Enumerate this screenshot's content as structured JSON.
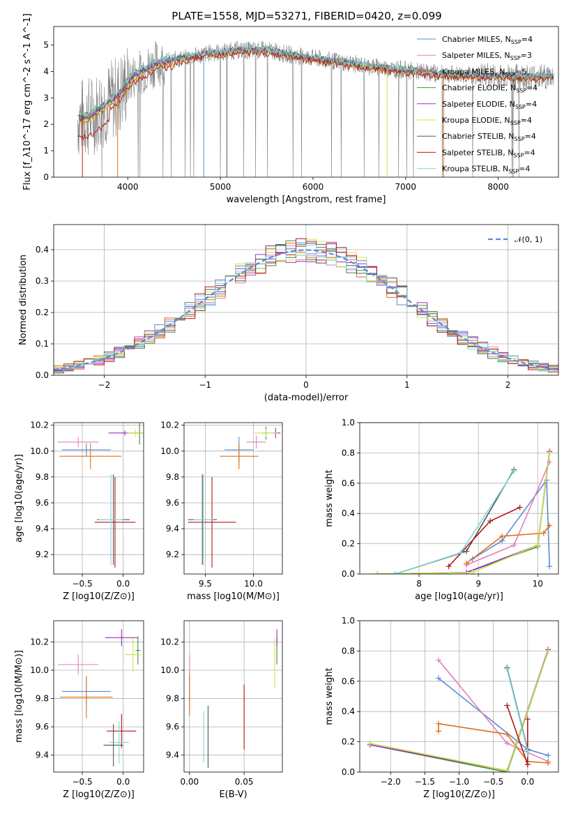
{
  "title": "PLATE=1558, MJD=53271, FIBERID=0420, z=0.099",
  "colors": {
    "chabrier_miles": "#5b8ad6",
    "salpeter_miles": "#e37fbf",
    "kroupa_miles": "#e06f16",
    "chabrier_elodie": "#3f8f3f",
    "salpeter_elodie": "#9a2ec4",
    "kroupa_elodie": "#cfe24a",
    "chabrier_stelib": "#555555",
    "salpeter_stelib": "#b11818",
    "kroupa_stelib": "#7fd6de",
    "data": "#808080",
    "normal": "#5b8ad6"
  },
  "chart_data": [
    {
      "id": "spectrum",
      "type": "line",
      "xlabel": "wavelength [Angstrom, rest frame]",
      "ylabel": "Flux [f_λ10^-17 erg cm^-2 s^-1 A^-1]",
      "xlim": [
        3200,
        8650
      ],
      "ylim": [
        0,
        5.7
      ],
      "xticks": [
        4000,
        5000,
        6000,
        7000,
        8000
      ],
      "yticks": [
        0,
        1,
        2,
        3,
        4,
        5
      ],
      "legend_position": "right",
      "legend": [
        {
          "label": "Chabrier MILES, N_SSP=4",
          "color_key": "chabrier_miles"
        },
        {
          "label": "Salpeter MILES, N_SSP=3",
          "color_key": "salpeter_miles"
        },
        {
          "label": "Kroupa MILES, N_SSP=5",
          "color_key": "kroupa_miles"
        },
        {
          "label": "Chabrier ELODIE, N_SSP=4",
          "color_key": "chabrier_elodie"
        },
        {
          "label": "Salpeter ELODIE, N_SSP=4",
          "color_key": "salpeter_elodie"
        },
        {
          "label": "Kroupa ELODIE, N_SSP=4",
          "color_key": "kroupa_elodie"
        },
        {
          "label": "Chabrier STELIB, N_SSP=4",
          "color_key": "chabrier_stelib"
        },
        {
          "label": "Salpeter STELIB, N_SSP=4",
          "color_key": "salpeter_stelib"
        },
        {
          "label": "Kroupa STELIB, N_SSP=4",
          "color_key": "kroupa_stelib"
        }
      ],
      "model_continuum": {
        "x": [
          3450,
          3600,
          3700,
          3900,
          4050,
          4300,
          4600,
          4900,
          5200,
          5500,
          5800,
          6200,
          6600,
          7000,
          7400,
          7800,
          8200,
          8600
        ],
        "y": [
          2.2,
          2.3,
          2.6,
          3.1,
          3.8,
          4.3,
          4.5,
          4.7,
          4.8,
          4.8,
          4.6,
          4.4,
          4.2,
          4.05,
          3.9,
          3.85,
          3.8,
          3.8
        ]
      }
    },
    {
      "id": "residuals",
      "type": "bar",
      "xlabel": "(data-model)/error",
      "ylabel": "Normed distribution",
      "xlim": [
        -2.5,
        2.5
      ],
      "ylim": [
        0,
        0.48
      ],
      "xticks": [
        -2,
        -1,
        0,
        1,
        2
      ],
      "yticks": [
        0.0,
        0.1,
        0.2,
        0.3,
        0.4
      ],
      "grid": true,
      "legend_position": "top-right",
      "legend": [
        {
          "label": "𝒩(0, 1)",
          "color_key": "normal",
          "style": "dashed"
        }
      ],
      "bin_width": 0.1
    },
    {
      "id": "age-vs-Z",
      "type": "scatter",
      "xlabel": "Z [log10(Z/Z⊙)]",
      "ylabel": "age [log10(age/yr)]",
      "xlim": [
        -0.85,
        0.25
      ],
      "ylim": [
        9.05,
        10.22
      ],
      "xticks": [
        -0.5,
        0.0
      ],
      "yticks": [
        9.2,
        9.4,
        9.6,
        9.8,
        10.0,
        10.2
      ],
      "grid": true,
      "points": [
        {
          "k": "chabrier_miles",
          "x": -0.45,
          "y": 10.01,
          "xerr": 0.3,
          "yerr": 0.05
        },
        {
          "k": "salpeter_miles",
          "x": -0.55,
          "y": 10.07,
          "xerr": 0.25,
          "yerr": 0.04
        },
        {
          "k": "kroupa_miles",
          "x": -0.4,
          "y": 9.96,
          "xerr": 0.38,
          "yerr": 0.1
        },
        {
          "k": "chabrier_elodie",
          "x": 0.2,
          "y": 10.14,
          "xerr": 0.03,
          "yerr": 0.09
        },
        {
          "k": "salpeter_elodie",
          "x": 0.02,
          "y": 10.14,
          "xerr": 0.2,
          "yerr": 0.02
        },
        {
          "k": "kroupa_elodie",
          "x": 0.15,
          "y": 10.14,
          "xerr": 0.1,
          "yerr": 0.03
        },
        {
          "k": "chabrier_stelib",
          "x": -0.12,
          "y": 9.47,
          "xerr": 0.2,
          "yerr": 0.35
        },
        {
          "k": "salpeter_stelib",
          "x": -0.1,
          "y": 9.45,
          "xerr": 0.25,
          "yerr": 0.35
        },
        {
          "k": "kroupa_stelib",
          "x": -0.15,
          "y": 9.47,
          "xerr": 0.15,
          "yerr": 0.35
        }
      ]
    },
    {
      "id": "age-vs-mass",
      "type": "scatter",
      "xlabel": "mass [log10(M/M⊙)]",
      "ylabel": "",
      "xlim": [
        9.28,
        10.3
      ],
      "ylim": [
        9.05,
        10.22
      ],
      "xticks": [
        9.5,
        10.0
      ],
      "yticks": [
        9.2,
        9.4,
        9.6,
        9.8,
        10.0,
        10.2
      ],
      "grid": true,
      "points": [
        {
          "k": "chabrier_miles",
          "x": 9.85,
          "y": 10.01,
          "xerr": 0.15,
          "yerr": 0.1
        },
        {
          "k": "salpeter_miles",
          "x": 10.03,
          "y": 10.07,
          "xerr": 0.1,
          "yerr": 0.05
        },
        {
          "k": "kroupa_miles",
          "x": 9.85,
          "y": 9.96,
          "xerr": 0.2,
          "yerr": 0.1
        },
        {
          "k": "chabrier_elodie",
          "x": 10.13,
          "y": 10.14,
          "xerr": 0.03,
          "yerr": 0.05
        },
        {
          "k": "salpeter_elodie",
          "x": 10.23,
          "y": 10.14,
          "xerr": 0.05,
          "yerr": 0.04
        },
        {
          "k": "kroupa_elodie",
          "x": 10.13,
          "y": 10.14,
          "xerr": 0.12,
          "yerr": 0.03
        },
        {
          "k": "chabrier_stelib",
          "x": 9.47,
          "y": 9.47,
          "xerr": 0.15,
          "yerr": 0.35
        },
        {
          "k": "salpeter_stelib",
          "x": 9.57,
          "y": 9.45,
          "xerr": 0.25,
          "yerr": 0.35
        },
        {
          "k": "kroupa_stelib",
          "x": 9.48,
          "y": 9.47,
          "xerr": 0.1,
          "yerr": 0.35
        }
      ]
    },
    {
      "id": "weight-vs-age",
      "type": "line",
      "xlabel": "age [log10(age/yr)]",
      "ylabel": "mass weight",
      "xlim": [
        7.0,
        10.35
      ],
      "ylim": [
        0,
        1.0
      ],
      "xticks": [
        8,
        9,
        10
      ],
      "yticks": [
        0.0,
        0.2,
        0.4,
        0.6,
        0.8,
        1.0
      ],
      "grid": true,
      "series": [
        {
          "k": "chabrier_miles",
          "x": [
            8.9,
            9.4,
            10.15,
            10.2
          ],
          "y": [
            0.1,
            0.22,
            0.62,
            0.05
          ]
        },
        {
          "k": "salpeter_miles",
          "x": [
            8.8,
            9.6,
            10.2
          ],
          "y": [
            0.06,
            0.19,
            0.74
          ]
        },
        {
          "k": "kroupa_miles",
          "x": [
            8.8,
            9.4,
            10.1,
            10.2
          ],
          "y": [
            0.07,
            0.25,
            0.27,
            0.32
          ]
        },
        {
          "k": "chabrier_elodie",
          "x": [
            7.3,
            8.8,
            10.0,
            10.2
          ],
          "y": [
            0.0,
            0.01,
            0.18,
            0.8
          ]
        },
        {
          "k": "salpeter_elodie",
          "x": [
            7.3,
            8.8,
            10.0,
            10.2
          ],
          "y": [
            0.0,
            0.01,
            0.19,
            0.81
          ]
        },
        {
          "k": "kroupa_elodie",
          "x": [
            7.3,
            8.9,
            10.0,
            10.2
          ],
          "y": [
            0.0,
            0.01,
            0.19,
            0.8
          ]
        },
        {
          "k": "chabrier_stelib",
          "x": [
            7.6,
            8.8,
            9.6
          ],
          "y": [
            0.0,
            0.15,
            0.69
          ]
        },
        {
          "k": "salpeter_stelib",
          "x": [
            8.5,
            9.2,
            9.7
          ],
          "y": [
            0.05,
            0.35,
            0.44
          ]
        },
        {
          "k": "kroupa_stelib",
          "x": [
            7.6,
            8.7,
            9.6
          ],
          "y": [
            0.0,
            0.14,
            0.68
          ]
        }
      ]
    },
    {
      "id": "mass-vs-Z",
      "type": "scatter",
      "xlabel": "Z [log10(Z/Z⊙)]",
      "ylabel": "mass [log10(M/M⊙)]",
      "xlim": [
        -0.85,
        0.25
      ],
      "ylim": [
        9.28,
        10.35
      ],
      "xticks": [
        -0.5,
        0.0
      ],
      "yticks": [
        9.4,
        9.6,
        9.8,
        10.0,
        10.2
      ],
      "grid": true,
      "points": [
        {
          "k": "chabrier_miles",
          "x": -0.45,
          "y": 9.85,
          "xerr": 0.3,
          "yerr": 0.1
        },
        {
          "k": "salpeter_miles",
          "x": -0.55,
          "y": 10.04,
          "xerr": 0.25,
          "yerr": 0.07
        },
        {
          "k": "kroupa_miles",
          "x": -0.45,
          "y": 9.81,
          "xerr": 0.32,
          "yerr": 0.15
        },
        {
          "k": "chabrier_elodie",
          "x": 0.18,
          "y": 10.14,
          "xerr": 0.03,
          "yerr": 0.1
        },
        {
          "k": "salpeter_elodie",
          "x": -0.02,
          "y": 10.23,
          "xerr": 0.2,
          "yerr": 0.06
        },
        {
          "k": "kroupa_elodie",
          "x": 0.12,
          "y": 10.11,
          "xerr": 0.1,
          "yerr": 0.12
        },
        {
          "k": "chabrier_stelib",
          "x": -0.12,
          "y": 9.47,
          "xerr": 0.12,
          "yerr": 0.15
        },
        {
          "k": "salpeter_stelib",
          "x": -0.02,
          "y": 9.57,
          "xerr": 0.18,
          "yerr": 0.12
        },
        {
          "k": "kroupa_stelib",
          "x": -0.05,
          "y": 9.49,
          "xerr": 0.12,
          "yerr": 0.15
        }
      ]
    },
    {
      "id": "mass-vs-ebv",
      "type": "scatter",
      "xlabel": "E(B-V)",
      "ylabel": "",
      "xlim": [
        -0.005,
        0.085
      ],
      "ylim": [
        9.28,
        10.35
      ],
      "xticks": [
        0.0,
        0.05
      ],
      "yticks": [
        9.4,
        9.6,
        9.8,
        10.0,
        10.2
      ],
      "grid": true,
      "points": [
        {
          "k": "chabrier_miles",
          "x": 0.0,
          "y": 9.85,
          "xerr": 0.0,
          "yerr": 0.1
        },
        {
          "k": "salpeter_miles",
          "x": 0.0,
          "y": 10.04,
          "xerr": 0.0,
          "yerr": 0.07
        },
        {
          "k": "kroupa_miles",
          "x": 0.0,
          "y": 9.83,
          "xerr": 0.0,
          "yerr": 0.15
        },
        {
          "k": "chabrier_elodie",
          "x": 0.08,
          "y": 10.14,
          "xerr": 0.0,
          "yerr": 0.1
        },
        {
          "k": "salpeter_elodie",
          "x": 0.08,
          "y": 10.23,
          "xerr": 0.0,
          "yerr": 0.06
        },
        {
          "k": "kroupa_elodie",
          "x": 0.078,
          "y": 10.05,
          "xerr": 0.0,
          "yerr": 0.18
        },
        {
          "k": "chabrier_stelib",
          "x": 0.017,
          "y": 9.53,
          "xerr": 0.0,
          "yerr": 0.22
        },
        {
          "k": "salpeter_stelib",
          "x": 0.05,
          "y": 9.67,
          "xerr": 0.0,
          "yerr": 0.23
        },
        {
          "k": "kroupa_stelib",
          "x": 0.013,
          "y": 9.53,
          "xerr": 0.0,
          "yerr": 0.18
        }
      ]
    },
    {
      "id": "weight-vs-Z",
      "type": "line",
      "xlabel": "Z [log10(Z/Z⊙)]",
      "ylabel": "mass weight",
      "xlim": [
        -2.45,
        0.45
      ],
      "ylim": [
        0,
        1.0
      ],
      "xticks": [
        -2.0,
        -1.5,
        -1.0,
        -0.5,
        0.0
      ],
      "yticks": [
        0.0,
        0.2,
        0.4,
        0.6,
        0.8,
        1.0
      ],
      "grid": true,
      "series": [
        {
          "k": "chabrier_miles",
          "x": [
            -1.3,
            0.0,
            0.3
          ],
          "y": [
            0.62,
            0.15,
            0.11
          ]
        },
        {
          "k": "salpeter_miles",
          "x": [
            -1.3,
            -0.3,
            0.3
          ],
          "y": [
            0.74,
            0.19,
            0.07
          ]
        },
        {
          "k": "kroupa_miles",
          "x": [
            -1.3,
            -1.3,
            -0.3,
            0.0,
            0.3
          ],
          "y": [
            0.27,
            0.32,
            0.25,
            0.07,
            0.06
          ]
        },
        {
          "k": "chabrier_elodie",
          "x": [
            -2.3,
            -0.3,
            0.3
          ],
          "y": [
            0.18,
            0.0,
            0.8
          ]
        },
        {
          "k": "salpeter_elodie",
          "x": [
            -2.3,
            -0.3,
            0.3
          ],
          "y": [
            0.18,
            0.01,
            0.81
          ]
        },
        {
          "k": "kroupa_elodie",
          "x": [
            -2.3,
            -0.3,
            0.3
          ],
          "y": [
            0.19,
            0.01,
            0.8
          ]
        },
        {
          "k": "chabrier_stelib",
          "x": [
            -0.3,
            0.0,
            0.0
          ],
          "y": [
            0.69,
            0.15,
            0.05
          ]
        },
        {
          "k": "salpeter_stelib",
          "x": [
            -0.3,
            0.0,
            0.0
          ],
          "y": [
            0.44,
            0.05,
            0.35
          ]
        },
        {
          "k": "kroupa_stelib",
          "x": [
            -0.3,
            0.0,
            0.0
          ],
          "y": [
            0.68,
            0.14,
            0.12
          ]
        }
      ]
    }
  ]
}
